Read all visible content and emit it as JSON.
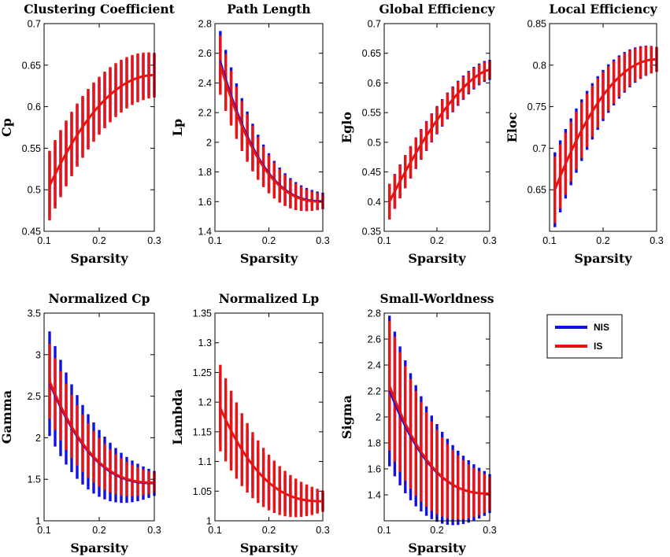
{
  "colors": {
    "nis": "#1010e0",
    "is": "#e81414",
    "axis": "#000000"
  },
  "legend": {
    "entries": [
      {
        "label": "NIS",
        "color": "#1010e0"
      },
      {
        "label": "IS",
        "color": "#e81414"
      }
    ]
  },
  "chart_data": [
    {
      "type": "line",
      "title": "Clustering Coefficient",
      "xlabel": "Sparsity",
      "ylabel": "Cp",
      "xlim": [
        0.1,
        0.3
      ],
      "ylim": [
        0.45,
        0.7
      ],
      "xticks": [
        "0.1",
        "0.2",
        "0.3"
      ],
      "yticks": [
        "0.45",
        "0.5",
        "0.55",
        "0.6",
        "0.65",
        "0.7"
      ],
      "sparsity": {
        "start": 0.11,
        "end": 0.3,
        "step": 0.01
      },
      "series": [
        {
          "name": "NIS",
          "mean": {
            "start": 0.505,
            "end": 0.638,
            "curvature": 2
          },
          "error": {
            "start": 0.04,
            "end": 0.025
          }
        },
        {
          "name": "IS",
          "mean": {
            "start": 0.505,
            "end": 0.638,
            "curvature": 2
          },
          "error": {
            "start": 0.042,
            "end": 0.027
          }
        }
      ]
    },
    {
      "type": "line",
      "title": "Path Length",
      "xlabel": "Sparsity",
      "ylabel": "Lp",
      "xlim": [
        0.1,
        0.3
      ],
      "ylim": [
        1.4,
        2.8
      ],
      "xticks": [
        "0.1",
        "0.2",
        "0.3"
      ],
      "yticks": [
        "1.4",
        "1.6",
        "1.8",
        "2",
        "2.2",
        "2.4",
        "2.6",
        "2.8"
      ],
      "sparsity": {
        "start": 0.11,
        "end": 0.3,
        "step": 0.01
      },
      "series": [
        {
          "name": "NIS",
          "mean": {
            "start": 2.55,
            "end": 1.605,
            "curvature": 2.5
          },
          "error": {
            "start": 0.2,
            "end": 0.055
          }
        },
        {
          "name": "IS",
          "mean": {
            "start": 2.52,
            "end": 1.6,
            "curvature": 2.5
          },
          "error": {
            "start": 0.2,
            "end": 0.05
          }
        }
      ]
    },
    {
      "type": "line",
      "title": "Global Efficiency",
      "xlabel": "Sparsity",
      "ylabel": "Eglo",
      "xlim": [
        0.1,
        0.3
      ],
      "ylim": [
        0.35,
        0.7
      ],
      "xticks": [
        "0.1",
        "0.2",
        "0.3"
      ],
      "yticks": [
        "0.35",
        "0.4",
        "0.45",
        "0.5",
        "0.55",
        "0.6",
        "0.65",
        "0.7"
      ],
      "sparsity": {
        "start": 0.11,
        "end": 0.3,
        "step": 0.01
      },
      "series": [
        {
          "name": "NIS",
          "mean": {
            "start": 0.4,
            "end": 0.622,
            "curvature": 1.5
          },
          "error": {
            "start": 0.03,
            "end": 0.017
          }
        },
        {
          "name": "IS",
          "mean": {
            "start": 0.4,
            "end": 0.622,
            "curvature": 1.5
          },
          "error": {
            "start": 0.03,
            "end": 0.015
          }
        }
      ]
    },
    {
      "type": "line",
      "title": "Local Efficiency",
      "xlabel": "Sparsity",
      "ylabel": "Eloc",
      "xlim": [
        0.1,
        0.3
      ],
      "ylim": [
        0.6,
        0.85
      ],
      "xticks": [
        "0.1",
        "0.2",
        "0.3"
      ],
      "yticks": [
        "0.65",
        "0.7",
        "0.75",
        "0.8",
        "0.85"
      ],
      "sparsity": {
        "start": 0.11,
        "end": 0.3,
        "step": 0.01
      },
      "series": [
        {
          "name": "NIS",
          "mean": {
            "start": 0.65,
            "end": 0.807,
            "curvature": 2
          },
          "error": {
            "start": 0.045,
            "end": 0.015
          }
        },
        {
          "name": "IS",
          "mean": {
            "start": 0.65,
            "end": 0.807,
            "curvature": 2
          },
          "error": {
            "start": 0.04,
            "end": 0.015
          }
        }
      ]
    },
    {
      "type": "line",
      "title": "Normalized Cp",
      "xlabel": "Sparsity",
      "ylabel": "Gamma",
      "xlim": [
        0.1,
        0.3
      ],
      "ylim": [
        1,
        3.5
      ],
      "xticks": [
        "0.1",
        "0.2",
        "0.3"
      ],
      "yticks": [
        "1",
        "1.5",
        "2",
        "2.5",
        "3",
        "3.5"
      ],
      "sparsity": {
        "start": 0.11,
        "end": 0.3,
        "step": 0.01
      },
      "series": [
        {
          "name": "NIS",
          "mean": {
            "start": 2.65,
            "end": 1.45,
            "curvature": 2.5
          },
          "error": {
            "start": 0.63,
            "end": 0.15
          }
        },
        {
          "name": "IS",
          "mean": {
            "start": 2.68,
            "end": 1.46,
            "curvature": 2.5
          },
          "error": {
            "start": 0.45,
            "end": 0.12
          }
        }
      ]
    },
    {
      "type": "line",
      "title": "Normalized Lp",
      "xlabel": "Sparsity",
      "ylabel": "Lambda",
      "xlim": [
        0.1,
        0.3
      ],
      "ylim": [
        1,
        1.35
      ],
      "xticks": [
        "0.1",
        "0.2",
        "0.3"
      ],
      "yticks": [
        "1",
        "1.05",
        "1.1",
        "1.15",
        "1.2",
        "1.25",
        "1.3",
        "1.35"
      ],
      "sparsity": {
        "start": 0.11,
        "end": 0.3,
        "step": 0.01
      },
      "series": [
        {
          "name": "NIS",
          "mean": {
            "start": 1.19,
            "end": 1.033,
            "curvature": 2.5
          },
          "error": {
            "start": 0.06,
            "end": 0.015
          }
        },
        {
          "name": "IS",
          "mean": {
            "start": 1.19,
            "end": 1.033,
            "curvature": 2.5
          },
          "error": {
            "start": 0.073,
            "end": 0.018
          }
        }
      ]
    },
    {
      "type": "line",
      "title": "Small-Worldness",
      "xlabel": "Sparsity",
      "ylabel": "Sigma",
      "xlim": [
        0.1,
        0.3
      ],
      "ylim": [
        1.2,
        2.8
      ],
      "xticks": [
        "0.1",
        "0.2",
        "0.3"
      ],
      "yticks": [
        "1.4",
        "1.6",
        "1.8",
        "2",
        "2.2",
        "2.4",
        "2.6",
        "2.8"
      ],
      "sparsity": {
        "start": 0.11,
        "end": 0.3,
        "step": 0.01
      },
      "series": [
        {
          "name": "NIS",
          "mean": {
            "start": 2.2,
            "end": 1.41,
            "curvature": 2.5
          },
          "error": {
            "start": 0.58,
            "end": 0.15
          }
        },
        {
          "name": "IS",
          "mean": {
            "start": 2.24,
            "end": 1.41,
            "curvature": 2.5
          },
          "error": {
            "start": 0.5,
            "end": 0.13
          }
        }
      ]
    }
  ]
}
